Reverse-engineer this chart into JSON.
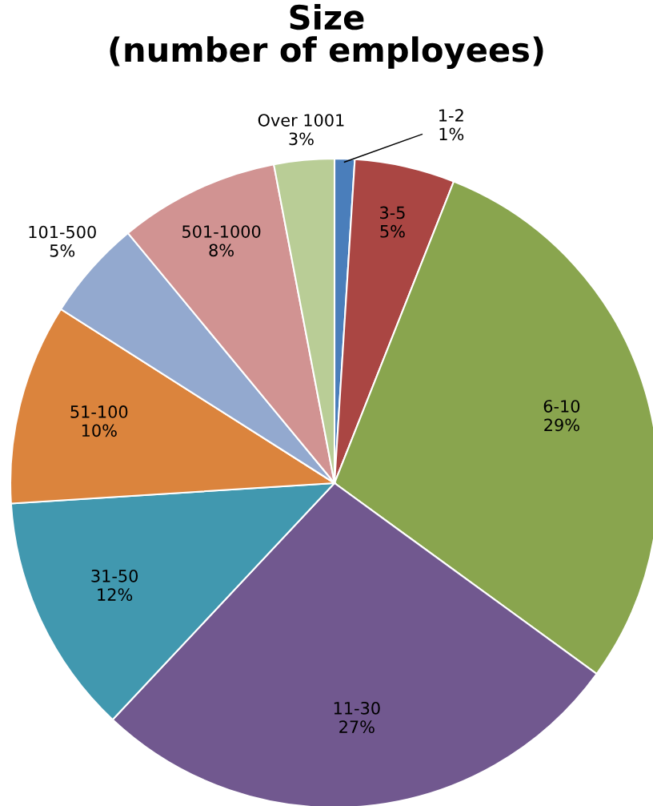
{
  "chart_data": {
    "type": "pie",
    "title": "Size\n(number of employees)",
    "categories": [
      "1-2",
      "3-5",
      "6-10",
      "11-30",
      "31-50",
      "51-100",
      "101-500",
      "501-1000",
      "Over 1001"
    ],
    "values": [
      1,
      5,
      29,
      27,
      12,
      10,
      5,
      8,
      3
    ],
    "value_labels": [
      "1%",
      "5%",
      "29%",
      "27%",
      "12%",
      "10%",
      "5%",
      "8%",
      "3%"
    ],
    "colors": [
      "#4a7ebb",
      "#aa4643",
      "#89a54e",
      "#71588f",
      "#4198af",
      "#db843d",
      "#93a9cf",
      "#d19392",
      "#b9cd96"
    ],
    "legend": false
  }
}
